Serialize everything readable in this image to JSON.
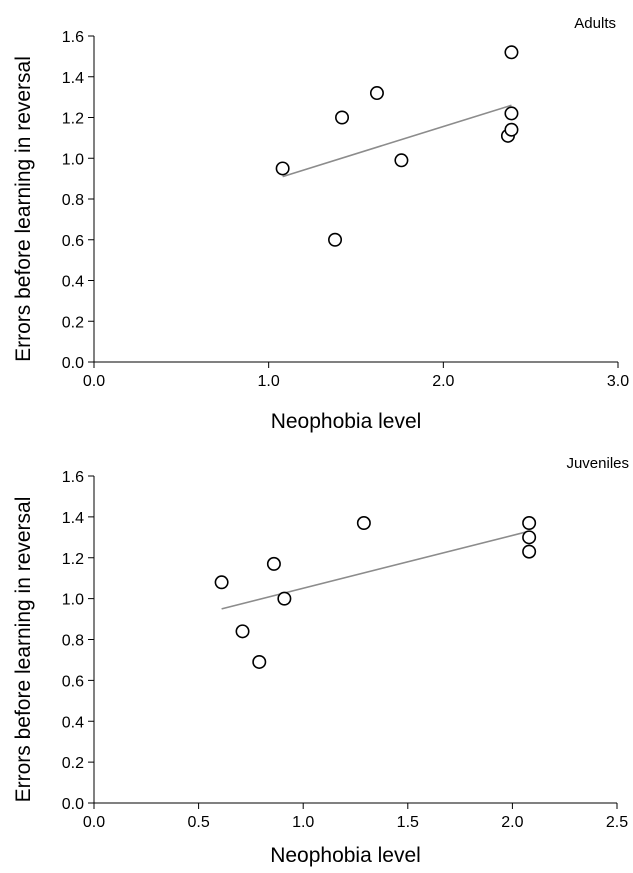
{
  "chart_data": [
    {
      "type": "scatter",
      "panel_label": "Adults",
      "xlabel": "Neophobia level",
      "ylabel": "Errors before learning in reversal",
      "xlim": [
        0,
        3
      ],
      "ylim": [
        0,
        1.6
      ],
      "x_ticks": [
        "0.0",
        "1.0",
        "2.0",
        "3.0"
      ],
      "y_ticks": [
        "0.0",
        "0.2",
        "0.4",
        "0.6",
        "0.8",
        "1.0",
        "1.2",
        "1.4",
        "1.6"
      ],
      "grid": false,
      "series": [
        {
          "points": [
            {
              "x": 1.08,
              "y": 0.95
            },
            {
              "x": 1.38,
              "y": 0.6
            },
            {
              "x": 1.42,
              "y": 1.2
            },
            {
              "x": 1.62,
              "y": 1.32
            },
            {
              "x": 1.76,
              "y": 0.99
            },
            {
              "x": 2.37,
              "y": 1.11
            },
            {
              "x": 2.39,
              "y": 1.14
            },
            {
              "x": 2.39,
              "y": 1.22
            },
            {
              "x": 2.39,
              "y": 1.52
            }
          ]
        }
      ],
      "trendline": {
        "x": [
          1.08,
          2.39
        ],
        "y": [
          0.91,
          1.26
        ]
      },
      "colors": {
        "trendline": "#8c8c8c",
        "marker": "#000000"
      }
    },
    {
      "type": "scatter",
      "panel_label": "Juveniles",
      "xlabel": "Neophobia level",
      "ylabel": "Errors before learning in reversal",
      "xlim": [
        0,
        2.5
      ],
      "ylim": [
        0,
        1.6
      ],
      "x_ticks": [
        "0.0",
        "0.5",
        "1.0",
        "1.5",
        "2.0",
        "2.5"
      ],
      "y_ticks": [
        "0.0",
        "0.2",
        "0.4",
        "0.6",
        "0.8",
        "1.0",
        "1.2",
        "1.4",
        "1.6"
      ],
      "grid": false,
      "series": [
        {
          "points": [
            {
              "x": 0.61,
              "y": 1.08
            },
            {
              "x": 0.71,
              "y": 0.84
            },
            {
              "x": 0.79,
              "y": 0.69
            },
            {
              "x": 0.86,
              "y": 1.17
            },
            {
              "x": 0.91,
              "y": 1.0
            },
            {
              "x": 1.29,
              "y": 1.37
            },
            {
              "x": 2.08,
              "y": 1.23
            },
            {
              "x": 2.08,
              "y": 1.3
            },
            {
              "x": 2.08,
              "y": 1.37
            }
          ]
        }
      ],
      "trendline": {
        "x": [
          0.61,
          2.08
        ],
        "y": [
          0.95,
          1.33
        ]
      },
      "colors": {
        "trendline": "#8c8c8c",
        "marker": "#000000"
      }
    }
  ]
}
